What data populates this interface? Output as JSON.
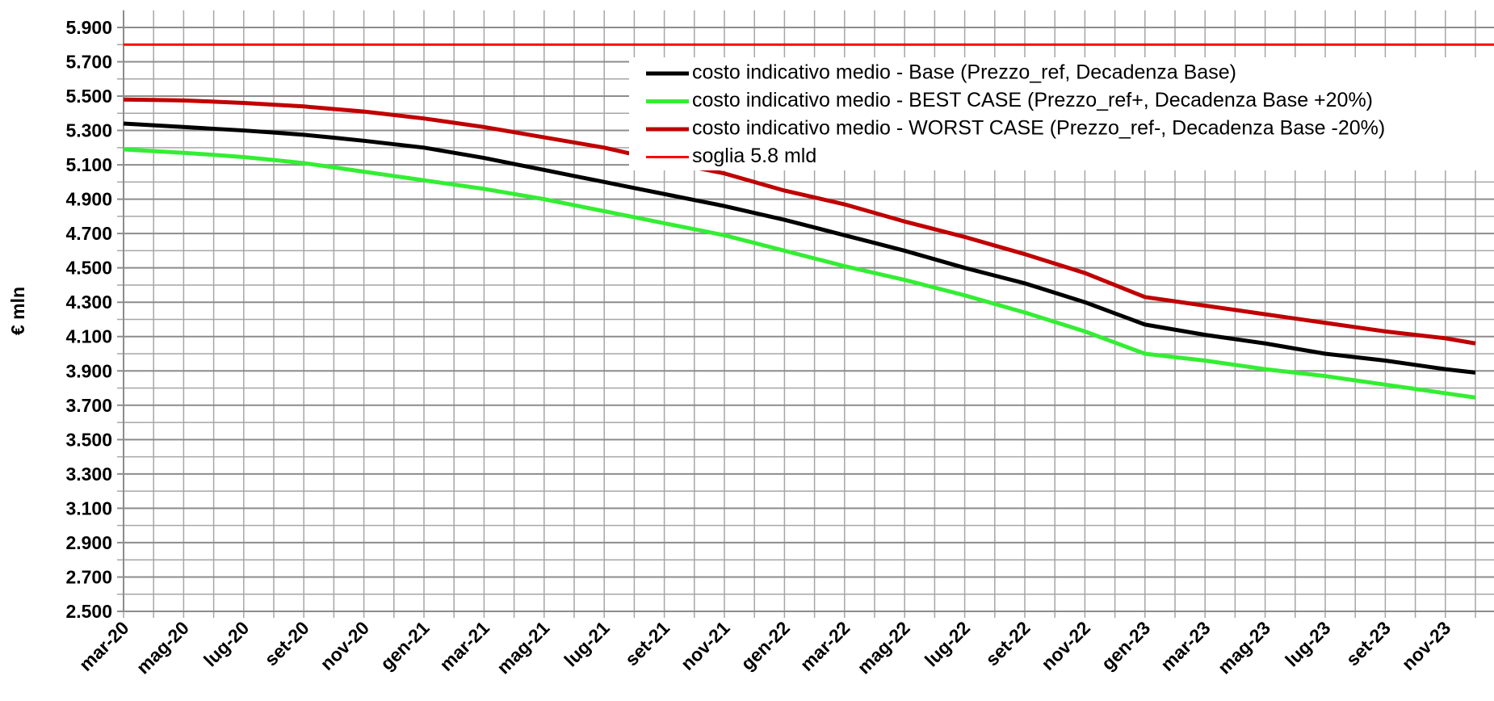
{
  "chart_data": {
    "type": "line",
    "y_label": "€ mln",
    "categories": [
      "mar-20",
      null,
      "mag-20",
      null,
      "lug-20",
      null,
      "set-20",
      null,
      "nov-20",
      null,
      "gen-21",
      null,
      "mar-21",
      null,
      "mag-21",
      null,
      "lug-21",
      null,
      "set-21",
      null,
      "nov-21",
      null,
      "gen-22",
      null,
      "mar-22",
      null,
      "mag-22",
      null,
      "lug-22",
      null,
      "set-22",
      null,
      "nov-22",
      null,
      "gen-23",
      null,
      "mar-23",
      null,
      "mag-23",
      null,
      "lug-23",
      null,
      "set-23",
      null,
      "nov-23",
      null
    ],
    "series": [
      {
        "name": "costo indicativo medio - Base (Prezzo_ref, Decadenza Base)",
        "color": "#000000",
        "values": [
          5340,
          5330,
          5320,
          5310,
          5300,
          5288,
          5275,
          5258,
          5240,
          5220,
          5200,
          5170,
          5140,
          5105,
          5070,
          5035,
          5000,
          4965,
          4930,
          4895,
          4860,
          4820,
          4780,
          4735,
          4690,
          4645,
          4600,
          4550,
          4500,
          4455,
          4410,
          4355,
          4300,
          4235,
          4170,
          4140,
          4110,
          4085,
          4060,
          4030,
          4000,
          3980,
          3960,
          3935,
          3910,
          3890
        ]
      },
      {
        "name": "costo indicativo medio - BEST CASE (Prezzo_ref+, Decadenza Base +20%)",
        "color": "#33ee33",
        "values": [
          5190,
          5180,
          5170,
          5158,
          5145,
          5128,
          5110,
          5085,
          5060,
          5035,
          5010,
          4985,
          4960,
          4930,
          4900,
          4865,
          4830,
          4795,
          4760,
          4725,
          4690,
          4645,
          4600,
          4555,
          4510,
          4470,
          4430,
          4385,
          4340,
          4290,
          4240,
          4185,
          4130,
          4065,
          4000,
          3980,
          3960,
          3935,
          3910,
          3890,
          3870,
          3845,
          3820,
          3795,
          3770,
          3745
        ]
      },
      {
        "name": "costo indicativo medio - WORST CASE (Prezzo_ref-, Decadenza Base -20%)",
        "color": "#c00000",
        "values": [
          5480,
          5478,
          5475,
          5468,
          5460,
          5450,
          5440,
          5425,
          5410,
          5390,
          5370,
          5345,
          5320,
          5290,
          5260,
          5230,
          5200,
          5160,
          5120,
          5085,
          5050,
          5000,
          4950,
          4910,
          4870,
          4820,
          4770,
          4725,
          4680,
          4630,
          4580,
          4525,
          4470,
          4400,
          4330,
          4305,
          4280,
          4255,
          4230,
          4205,
          4180,
          4155,
          4130,
          4110,
          4090,
          4060
        ]
      }
    ],
    "reference_line": {
      "name": "soglia 5.8 mld",
      "value": 5800,
      "color": "#ff0000"
    },
    "ylim": [
      2500,
      6000
    ],
    "yticks": [
      {
        "value": 2500,
        "label": "2.500"
      },
      {
        "value": 2700,
        "label": "2.700"
      },
      {
        "value": 2900,
        "label": "2.900"
      },
      {
        "value": 3100,
        "label": "3.100"
      },
      {
        "value": 3300,
        "label": "3.300"
      },
      {
        "value": 3500,
        "label": "3.500"
      },
      {
        "value": 3700,
        "label": "3.700"
      },
      {
        "value": 3900,
        "label": "3.900"
      },
      {
        "value": 4100,
        "label": "4.100"
      },
      {
        "value": 4300,
        "label": "4.300"
      },
      {
        "value": 4500,
        "label": "4.500"
      },
      {
        "value": 4700,
        "label": "4.700"
      },
      {
        "value": 4900,
        "label": "4.900"
      },
      {
        "value": 5100,
        "label": "5.100"
      },
      {
        "value": 5300,
        "label": "5.300"
      },
      {
        "value": 5500,
        "label": "5.500"
      },
      {
        "value": 5700,
        "label": "5.700"
      },
      {
        "value": 5900,
        "label": "5.900"
      }
    ],
    "grid": true,
    "legend": "top-right"
  }
}
